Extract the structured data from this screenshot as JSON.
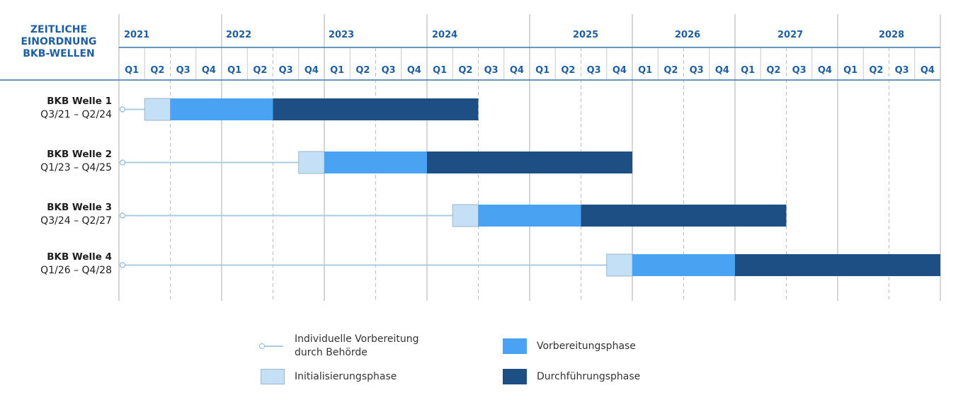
{
  "header": {
    "corner_lines": [
      "ZEITLICHE",
      "EINORDNUNG",
      "BKB-WELLEN"
    ]
  },
  "colors": {
    "header_text": "#1f5f9f",
    "axis_line": "#3a74ac",
    "grid_solid": "#c9c9c9",
    "grid_dashed": "#bdbdbd",
    "individuelle": "#a9cce6",
    "initialisierung": "#c3e0f7",
    "vorbereitung": "#4aa3f2",
    "durchfuehrung": "#1d4f84"
  },
  "legend": {
    "individuelle_line1": "Individuelle Vorbereitung",
    "individuelle_line2": "durch Behörde",
    "initialisierung": "Initialisierungsphase",
    "vorbereitung": "Vorbereitungsphase",
    "durchfuehrung": "Durchführungsphase"
  },
  "chart_data": {
    "type": "gantt",
    "years": [
      "2021",
      "2022",
      "2023",
      "2024",
      "2025",
      "2026",
      "2027",
      "2028"
    ],
    "quarters": [
      "Q1",
      "Q2",
      "Q3",
      "Q4"
    ],
    "time_unit": "quarter",
    "waves": [
      {
        "name": "BKB Welle 1",
        "range": "Q3/21 – Q2/24",
        "individuelle_start": "Q1/21",
        "initialisierung": [
          "Q2/21",
          "Q2/21"
        ],
        "vorbereitung": [
          "Q3/21",
          "Q2/22"
        ],
        "durchfuehrung": [
          "Q3/22",
          "Q2/24"
        ]
      },
      {
        "name": "BKB Welle 2",
        "range": "Q1/23 – Q4/25",
        "individuelle_start": "Q1/21",
        "initialisierung": [
          "Q4/22",
          "Q4/22"
        ],
        "vorbereitung": [
          "Q1/23",
          "Q4/23"
        ],
        "durchfuehrung": [
          "Q1/24",
          "Q4/25"
        ]
      },
      {
        "name": "BKB Welle 3",
        "range": "Q3/24 – Q2/27",
        "individuelle_start": "Q1/21",
        "initialisierung": [
          "Q2/24",
          "Q2/24"
        ],
        "vorbereitung": [
          "Q3/24",
          "Q2/25"
        ],
        "durchfuehrung": [
          "Q3/25",
          "Q2/27"
        ]
      },
      {
        "name": "BKB Welle 4",
        "range": "Q1/26 – Q4/28",
        "individuelle_start": "Q1/21",
        "initialisierung": [
          "Q4/25",
          "Q4/25"
        ],
        "vorbereitung": [
          "Q1/26",
          "Q4/26"
        ],
        "durchfuehrung": [
          "Q1/27",
          "Q4/28"
        ]
      }
    ]
  }
}
